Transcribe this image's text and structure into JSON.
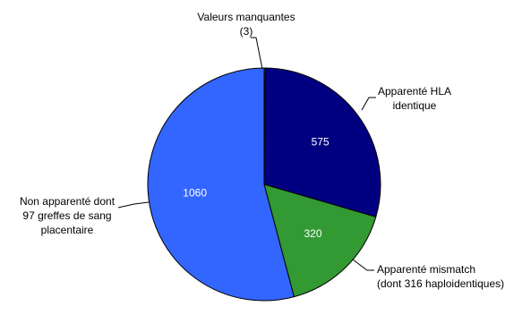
{
  "chart_data": {
    "type": "pie",
    "categories": [
      [
        "Valeurs manquantes"
      ],
      [
        "Apparenté HLA",
        "identique"
      ],
      [
        "Apparenté mismatch",
        "(dont 316 haploidentiques)"
      ],
      [
        "Non apparenté dont",
        "97 greffes de sang",
        "placentaire"
      ]
    ],
    "values": [
      3,
      575,
      320,
      1060
    ],
    "value_labels": [
      "(3)",
      "575",
      "320",
      "1060"
    ],
    "colors": [
      "#ffffff",
      "#000080",
      "#339933",
      "#3366ff"
    ]
  }
}
